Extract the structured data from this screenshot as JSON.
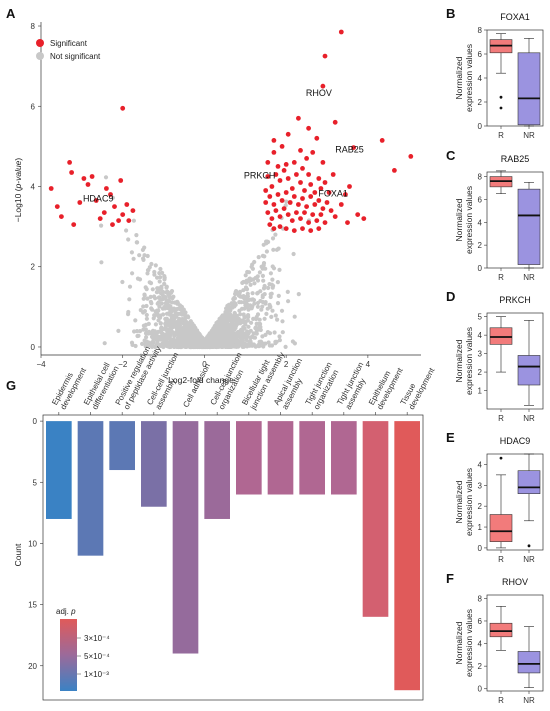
{
  "panels": {
    "A": "A",
    "B": "B",
    "C": "C",
    "D": "D",
    "E": "E",
    "F": "F",
    "G": "G"
  },
  "colors": {
    "significant": "#e8202a",
    "not_significant": "#c8c8c8",
    "box_R": "#f27b7b",
    "box_NR": "#9b93e0",
    "grad_top": "#e05a5a",
    "grad_mid": "#9b6a9a",
    "grad_bottom": "#3a82c4"
  },
  "chart_data": [
    {
      "type": "scatter",
      "id": "volcano",
      "xlabel": "Log2-fold change",
      "ylabel_prefix": "−Log10 (",
      "ylabel_italic": "p-value",
      "ylabel_suffix": ")",
      "xlim": [
        -4,
        5.3
      ],
      "ylim": [
        -0.2,
        8.1
      ],
      "xticks": [
        -4,
        -2,
        0,
        2,
        4
      ],
      "yticks": [
        0,
        2,
        4,
        6,
        8
      ],
      "legend": [
        "Significant",
        "Not significant"
      ],
      "labels": [
        {
          "text": "RHOV",
          "x": 2.8,
          "y": 6.25
        },
        {
          "text": "RAB25",
          "x": 3.55,
          "y": 4.85
        },
        {
          "text": "PRKCH",
          "x": 1.35,
          "y": 4.2
        },
        {
          "text": "FOXA1",
          "x": 3.15,
          "y": 3.75
        },
        {
          "text": "HDAC9",
          "x": -2.6,
          "y": 3.62
        }
      ],
      "significant_points": [
        [
          3.35,
          7.85
        ],
        [
          2.95,
          7.25
        ],
        [
          2.9,
          6.5
        ],
        [
          -2.0,
          5.95
        ],
        [
          2.55,
          5.45
        ],
        [
          2.3,
          5.7
        ],
        [
          3.2,
          5.6
        ],
        [
          2.05,
          5.3
        ],
        [
          4.35,
          5.15
        ],
        [
          1.7,
          5.15
        ],
        [
          2.75,
          5.2
        ],
        [
          1.9,
          5.0
        ],
        [
          3.65,
          4.97
        ],
        [
          5.05,
          4.75
        ],
        [
          2.65,
          4.85
        ],
        [
          4.65,
          4.4
        ],
        [
          1.55,
          4.6
        ],
        [
          1.8,
          4.5
        ],
        [
          2.2,
          4.6
        ],
        [
          2.4,
          4.45
        ],
        [
          2.9,
          4.6
        ],
        [
          3.55,
          4.0
        ],
        [
          -3.75,
          3.95
        ],
        [
          -2.05,
          4.15
        ],
        [
          -3.25,
          4.35
        ],
        [
          -2.75,
          4.25
        ],
        [
          -3.3,
          4.6
        ],
        [
          -2.95,
          4.2
        ],
        [
          -2.85,
          4.05
        ],
        [
          -2.4,
          3.95
        ],
        [
          -2.3,
          3.8
        ],
        [
          -3.05,
          3.6
        ],
        [
          -2.65,
          3.65
        ],
        [
          -2.2,
          3.5
        ],
        [
          -1.9,
          3.55
        ],
        [
          -1.75,
          3.4
        ],
        [
          -2.0,
          3.3
        ],
        [
          -2.45,
          3.35
        ],
        [
          -2.1,
          3.15
        ],
        [
          -1.85,
          3.15
        ],
        [
          -2.25,
          3.05
        ],
        [
          -3.5,
          3.25
        ],
        [
          -3.2,
          3.05
        ],
        [
          -3.6,
          3.5
        ],
        [
          -2.55,
          3.2
        ],
        [
          1.55,
          4.25
        ],
        [
          1.65,
          4.0
        ],
        [
          1.75,
          4.3
        ],
        [
          1.85,
          4.15
        ],
        [
          1.95,
          4.4
        ],
        [
          2.05,
          4.2
        ],
        [
          2.15,
          3.95
        ],
        [
          2.25,
          4.3
        ],
        [
          2.35,
          4.1
        ],
        [
          2.45,
          3.9
        ],
        [
          2.55,
          4.3
        ],
        [
          2.6,
          4.05
        ],
        [
          2.7,
          3.85
        ],
        [
          2.8,
          4.2
        ],
        [
          2.85,
          3.95
        ],
        [
          2.95,
          4.1
        ],
        [
          3.05,
          3.85
        ],
        [
          1.6,
          3.75
        ],
        [
          1.7,
          3.55
        ],
        [
          1.8,
          3.8
        ],
        [
          1.9,
          3.65
        ],
        [
          2.0,
          3.85
        ],
        [
          2.1,
          3.6
        ],
        [
          2.2,
          3.75
        ],
        [
          2.3,
          3.55
        ],
        [
          2.4,
          3.7
        ],
        [
          2.5,
          3.5
        ],
        [
          2.6,
          3.75
        ],
        [
          2.7,
          3.55
        ],
        [
          2.8,
          3.65
        ],
        [
          2.9,
          3.45
        ],
        [
          3.0,
          3.6
        ],
        [
          3.1,
          3.4
        ],
        [
          1.55,
          3.35
        ],
        [
          1.65,
          3.2
        ],
        [
          1.75,
          3.4
        ],
        [
          1.85,
          3.25
        ],
        [
          1.95,
          3.45
        ],
        [
          2.05,
          3.3
        ],
        [
          2.15,
          3.15
        ],
        [
          2.25,
          3.35
        ],
        [
          2.35,
          3.2
        ],
        [
          2.45,
          3.35
        ],
        [
          2.55,
          3.1
        ],
        [
          2.65,
          3.3
        ],
        [
          2.75,
          3.15
        ],
        [
          2.85,
          3.3
        ],
        [
          2.95,
          3.1
        ],
        [
          1.6,
          3.05
        ],
        [
          1.7,
          2.95
        ],
        [
          1.85,
          3.0
        ],
        [
          2.0,
          2.95
        ],
        [
          2.2,
          2.9
        ],
        [
          2.4,
          2.95
        ],
        [
          2.6,
          2.9
        ],
        [
          2.8,
          2.95
        ],
        [
          3.2,
          3.25
        ],
        [
          3.35,
          3.55
        ],
        [
          3.5,
          3.1
        ],
        [
          3.75,
          3.3
        ],
        [
          3.9,
          3.2
        ],
        [
          3.45,
          3.8
        ],
        [
          1.5,
          3.9
        ],
        [
          1.5,
          3.6
        ],
        [
          2.0,
          4.55
        ],
        [
          2.5,
          4.7
        ],
        [
          3.15,
          4.3
        ],
        [
          1.7,
          4.85
        ],
        [
          2.35,
          4.9
        ]
      ]
    },
    {
      "type": "box",
      "id": "FOXA1",
      "title": "FOXA1",
      "ylabel": [
        "Normalized",
        "expression values"
      ],
      "categories": [
        "R",
        "NR"
      ],
      "ylim": [
        0,
        8
      ],
      "yticks": [
        0,
        2,
        4,
        6,
        8
      ],
      "boxes": [
        {
          "q1": 6.1,
          "median": 6.7,
          "q3": 7.2,
          "lo": 4.4,
          "hi": 7.7,
          "outliers": [
            2.4,
            1.5
          ]
        },
        {
          "q1": 0.1,
          "median": 2.3,
          "q3": 6.1,
          "lo": 0.0,
          "hi": 7.3,
          "outliers": []
        }
      ]
    },
    {
      "type": "box",
      "id": "RAB25",
      "title": "RAB25",
      "ylabel": [
        "Normalized",
        "expression values"
      ],
      "categories": [
        "R",
        "NR"
      ],
      "ylim": [
        0,
        8.4
      ],
      "yticks": [
        0,
        2,
        4,
        6,
        8
      ],
      "boxes": [
        {
          "q1": 7.1,
          "median": 7.6,
          "q3": 8.0,
          "lo": 6.5,
          "hi": 8.5,
          "outliers": []
        },
        {
          "q1": 0.3,
          "median": 4.6,
          "q3": 6.9,
          "lo": 0.0,
          "hi": 7.5,
          "outliers": []
        }
      ]
    },
    {
      "type": "box",
      "id": "PRKCH",
      "title": "PRKCH",
      "ylabel": [
        "Normalized",
        "expression values"
      ],
      "categories": [
        "R",
        "NR"
      ],
      "ylim": [
        0,
        5.2
      ],
      "yticks": [
        1,
        2,
        3,
        4,
        5
      ],
      "boxes": [
        {
          "q1": 3.5,
          "median": 3.9,
          "q3": 4.4,
          "lo": 2.0,
          "hi": 5.0,
          "outliers": []
        },
        {
          "q1": 1.3,
          "median": 2.3,
          "q3": 2.9,
          "lo": 0.2,
          "hi": 4.8,
          "outliers": []
        }
      ]
    },
    {
      "type": "box",
      "id": "HDAC9",
      "title": "HDAC9",
      "ylabel": [
        "Normalized",
        "expression values"
      ],
      "categories": [
        "R",
        "NR"
      ],
      "ylim": [
        -0.1,
        4.5
      ],
      "yticks": [
        0,
        1,
        2,
        3,
        4
      ],
      "boxes": [
        {
          "q1": 0.3,
          "median": 0.8,
          "q3": 1.6,
          "lo": 0.0,
          "hi": 3.5,
          "outliers": [
            4.3
          ]
        },
        {
          "q1": 2.6,
          "median": 2.9,
          "q3": 3.7,
          "lo": 1.3,
          "hi": 4.5,
          "outliers": [
            0.1
          ]
        }
      ]
    },
    {
      "type": "box",
      "id": "RHOV",
      "title": "RHOV",
      "ylabel": [
        "Normalized",
        "expression values"
      ],
      "categories": [
        "R",
        "NR"
      ],
      "ylim": [
        -0.2,
        8.3
      ],
      "yticks": [
        0,
        2,
        4,
        6,
        8
      ],
      "boxes": [
        {
          "q1": 4.6,
          "median": 5.1,
          "q3": 5.8,
          "lo": 3.4,
          "hi": 7.3,
          "outliers": []
        },
        {
          "q1": 1.4,
          "median": 2.2,
          "q3": 3.3,
          "lo": 0.1,
          "hi": 5.5,
          "outliers": []
        }
      ]
    },
    {
      "type": "bar",
      "id": "go_counts",
      "ylabel": "Count",
      "ylim": [
        -0.5,
        22.8
      ],
      "yticks": [
        0,
        5,
        10,
        15,
        20
      ],
      "categories": [
        [
          "Epidermis",
          "development"
        ],
        [
          "Epithelial cell",
          "differentiation"
        ],
        [
          "Positive regulation",
          "of peptidase activity"
        ],
        [
          "Cell-cell junction",
          "assembly"
        ],
        [
          "Cell adhesion"
        ],
        [
          "Cell-cell junction",
          "organization"
        ],
        [
          "Bicellular tight",
          "junction assembly"
        ],
        [
          "Apical junction",
          "assembly"
        ],
        [
          "Tight junction",
          "organization"
        ],
        [
          "Tight junction",
          "assembly"
        ],
        [
          "Epithelium",
          "development"
        ],
        [
          "Tissue",
          "development"
        ]
      ],
      "values": [
        8,
        11,
        4,
        7,
        19,
        8,
        6,
        6,
        6,
        6,
        16,
        22
      ],
      "colors": [
        "#3a82c4",
        "#5c78b4",
        "#5c78b4",
        "#7a70a6",
        "#956b9c",
        "#9b6a9a",
        "#b06792",
        "#b06792",
        "#b06792",
        "#b06792",
        "#d36070",
        "#e05a5a"
      ],
      "legend_title_prefix": "adj. ",
      "legend_title_italic": "p",
      "legend_ticks": [
        "3×10⁻⁴",
        "5×10⁻⁴",
        "1×10⁻³"
      ]
    }
  ]
}
